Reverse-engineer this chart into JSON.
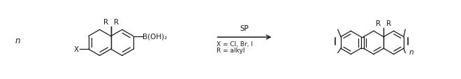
{
  "bg_color": "#ffffff",
  "line_color": "#1a1a1a",
  "figsize": [
    6.6,
    1.14
  ],
  "dpi": 100,
  "arrow_label": "SP",
  "condition1": "X = Cl, Br, I",
  "condition2": "R = alkyl",
  "n_left": "n",
  "n_right": "n",
  "X_label": "X",
  "R_labels": [
    "R",
    "R"
  ],
  "B_label": "B(OH)₂",
  "font_size": 7.5
}
